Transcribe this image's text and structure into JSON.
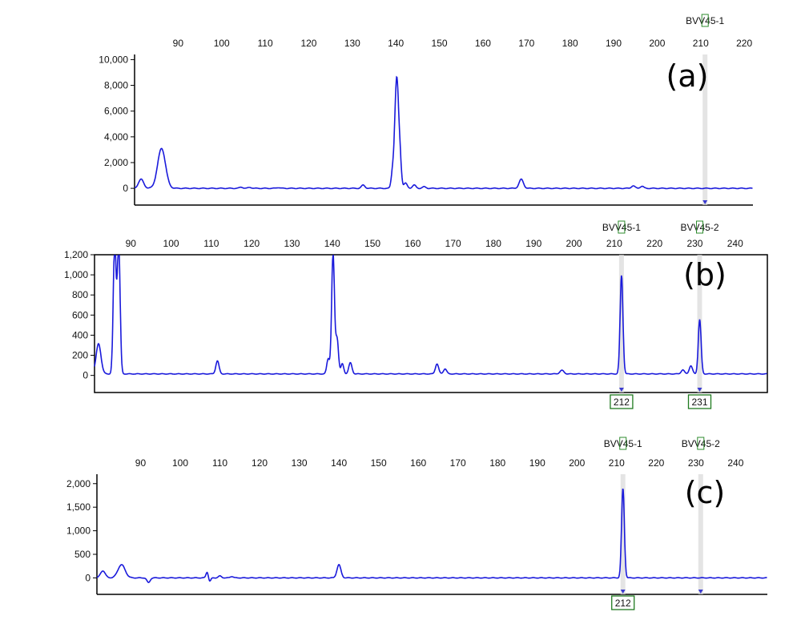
{
  "chart_data": [
    {
      "type": "line",
      "panel_label": "(a)",
      "x_ticks": [
        90,
        100,
        110,
        120,
        130,
        140,
        150,
        160,
        170,
        180,
        190,
        200,
        210,
        220
      ],
      "xlim": [
        80,
        222
      ],
      "y_ticks": [
        "10,000",
        "8,000",
        "6,000",
        "4,000",
        "2,000",
        "0"
      ],
      "y_tick_values": [
        10000,
        8000,
        6000,
        4000,
        2000,
        0
      ],
      "ylim": [
        -1300,
        10400
      ],
      "color": "#1a1adb",
      "baseline": 0,
      "peaks": [
        {
          "x": 81.5,
          "y": 700,
          "w": 0.6
        },
        {
          "x": 86.2,
          "y": 3100,
          "w": 0.9
        },
        {
          "x": 104.5,
          "y": 90,
          "w": 0.4
        },
        {
          "x": 106.5,
          "y": 70,
          "w": 0.4
        },
        {
          "x": 113,
          "y": 60,
          "w": 0.4
        },
        {
          "x": 132.5,
          "y": 250,
          "w": 0.4
        },
        {
          "x": 139.2,
          "y": 1000,
          "w": 0.3
        },
        {
          "x": 140.2,
          "y": 8600,
          "w": 0.45
        },
        {
          "x": 141.0,
          "y": 1600,
          "w": 0.3
        },
        {
          "x": 142.2,
          "y": 400,
          "w": 0.4
        },
        {
          "x": 144.2,
          "y": 250,
          "w": 0.4
        },
        {
          "x": 146.5,
          "y": 120,
          "w": 0.4
        },
        {
          "x": 168.8,
          "y": 700,
          "w": 0.5
        },
        {
          "x": 194.5,
          "y": 200,
          "w": 0.4
        },
        {
          "x": 196.5,
          "y": 160,
          "w": 0.4
        }
      ],
      "markers": [
        {
          "label": "BVV45-1",
          "x": 211
        }
      ],
      "size_labels": []
    },
    {
      "type": "line",
      "panel_label": "(b)",
      "x_ticks": [
        90,
        100,
        110,
        120,
        130,
        140,
        150,
        160,
        170,
        180,
        190,
        200,
        210,
        220,
        230,
        240
      ],
      "xlim": [
        81,
        248
      ],
      "y_ticks": [
        "1,200",
        "1,000",
        "800",
        "600",
        "400",
        "200",
        "0"
      ],
      "y_tick_values": [
        1200,
        1000,
        800,
        600,
        400,
        200,
        0
      ],
      "ylim": [
        -170,
        1200
      ],
      "color": "#1a1adb",
      "baseline": 15,
      "peaks": [
        {
          "x": 82,
          "y": 300,
          "w": 0.6
        },
        {
          "x": 86,
          "y": 1300,
          "w": 0.35
        },
        {
          "x": 87,
          "y": 1300,
          "w": 0.35
        },
        {
          "x": 111.5,
          "y": 130,
          "w": 0.4
        },
        {
          "x": 139,
          "y": 150,
          "w": 0.35
        },
        {
          "x": 140.2,
          "y": 1200,
          "w": 0.35
        },
        {
          "x": 141.2,
          "y": 350,
          "w": 0.35
        },
        {
          "x": 142.5,
          "y": 100,
          "w": 0.35
        },
        {
          "x": 144.5,
          "y": 110,
          "w": 0.4
        },
        {
          "x": 166,
          "y": 100,
          "w": 0.4
        },
        {
          "x": 168,
          "y": 50,
          "w": 0.4
        },
        {
          "x": 197,
          "y": 35,
          "w": 0.5
        },
        {
          "x": 211.8,
          "y": 980,
          "w": 0.35
        },
        {
          "x": 227,
          "y": 40,
          "w": 0.4
        },
        {
          "x": 229,
          "y": 80,
          "w": 0.4
        },
        {
          "x": 231.2,
          "y": 540,
          "w": 0.35
        }
      ],
      "markers": [
        {
          "label": "BVV45-1",
          "x": 211.8
        },
        {
          "label": "BVV45-2",
          "x": 231.2
        }
      ],
      "size_labels": [
        {
          "label": "212",
          "x": 211.8
        },
        {
          "label": "231",
          "x": 231.2
        }
      ]
    },
    {
      "type": "line",
      "panel_label": "(c)",
      "x_ticks": [
        90,
        100,
        110,
        120,
        130,
        140,
        150,
        160,
        170,
        180,
        190,
        200,
        210,
        220,
        230,
        240
      ],
      "xlim": [
        79,
        248
      ],
      "y_ticks": [
        "2,000",
        "1,500",
        "1,000",
        "500",
        "0"
      ],
      "y_tick_values": [
        2000,
        1500,
        1000,
        500,
        0
      ],
      "ylim": [
        -350,
        2200
      ],
      "color": "#1a1adb",
      "baseline": 0,
      "peaks": [
        {
          "x": 80.5,
          "y": 150,
          "w": 0.6
        },
        {
          "x": 85.2,
          "y": 280,
          "w": 0.9
        },
        {
          "x": 92,
          "y": -100,
          "w": 0.4
        },
        {
          "x": 106.8,
          "y": 130,
          "w": 0.3
        },
        {
          "x": 107.4,
          "y": -80,
          "w": 0.3
        },
        {
          "x": 110,
          "y": 40,
          "w": 0.4
        },
        {
          "x": 113,
          "y": 30,
          "w": 0.4
        },
        {
          "x": 140,
          "y": 280,
          "w": 0.5
        },
        {
          "x": 211.6,
          "y": 1900,
          "w": 0.35
        }
      ],
      "markers": [
        {
          "label": "BVV45-1",
          "x": 211.6
        },
        {
          "label": "BVV45-2",
          "x": 231.2
        }
      ],
      "size_labels": [
        {
          "label": "212",
          "x": 211.6
        }
      ]
    }
  ]
}
